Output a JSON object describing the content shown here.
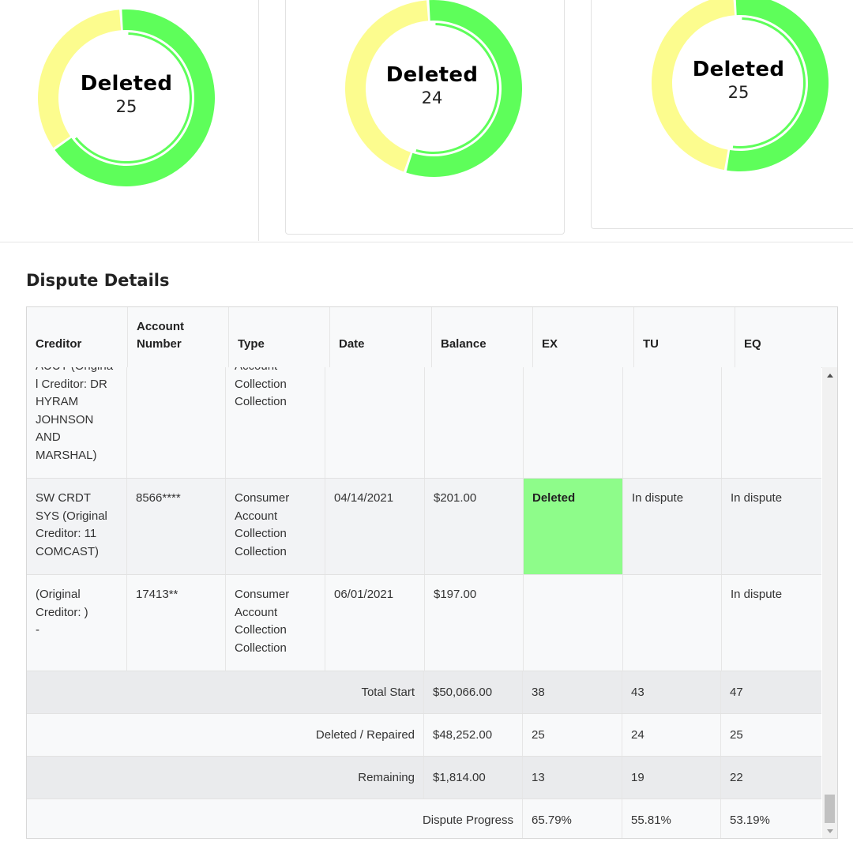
{
  "colors": {
    "deleted_green": "#5efe5a",
    "remaining_yellow": "#fcfc8e",
    "deleted_cell_bg": "#8efc8a"
  },
  "donuts": [
    {
      "label": "Deleted",
      "value": "25",
      "deleted": 25,
      "total": 38
    },
    {
      "label": "Deleted",
      "value": "24",
      "deleted": 24,
      "total": 43
    },
    {
      "label": "Deleted",
      "value": "25",
      "deleted": 25,
      "total": 47
    }
  ],
  "section_title": "Dispute Details",
  "table": {
    "headers": [
      "Creditor",
      "Account\nNumber",
      "Type",
      "Date",
      "Balance",
      "EX",
      "TU",
      "EQ"
    ],
    "rows": [
      {
        "creditor": "AUUT (Origina\nl Creditor: DR\nHYRAM\nJOHNSON\nAND\nMARSHAL)",
        "account": "",
        "type": "Account\nCollection\nCollection",
        "date": "",
        "balance": "",
        "ex": "",
        "tu": "",
        "eq": ""
      },
      {
        "creditor": "SW CRDT\nSYS (Original\nCreditor: 11\nCOMCAST)",
        "account": "8566****",
        "type": "Consumer\nAccount\nCollection\nCollection",
        "date": "04/14/2021",
        "balance": "$201.00",
        "ex": "Deleted",
        "tu": "In dispute",
        "eq": "In dispute"
      },
      {
        "creditor": " (Original\nCreditor: )\n-",
        "account": "17413**",
        "type": "Consumer\nAccount\nCollection\nCollection",
        "date": "06/01/2021",
        "balance": "$197.00",
        "ex": "",
        "tu": "",
        "eq": "In dispute"
      }
    ],
    "summary": [
      {
        "label": "Total Start",
        "balance": "$50,066.00",
        "ex": "38",
        "tu": "43",
        "eq": "47"
      },
      {
        "label": "Deleted / Repaired",
        "balance": "$48,252.00",
        "ex": "25",
        "tu": "24",
        "eq": "25"
      },
      {
        "label": "Remaining",
        "balance": "$1,814.00",
        "ex": "13",
        "tu": "19",
        "eq": "22"
      }
    ],
    "progress": {
      "label": "Dispute Progress",
      "ex": "65.79%",
      "tu": "55.81%",
      "eq": "53.19%"
    }
  }
}
